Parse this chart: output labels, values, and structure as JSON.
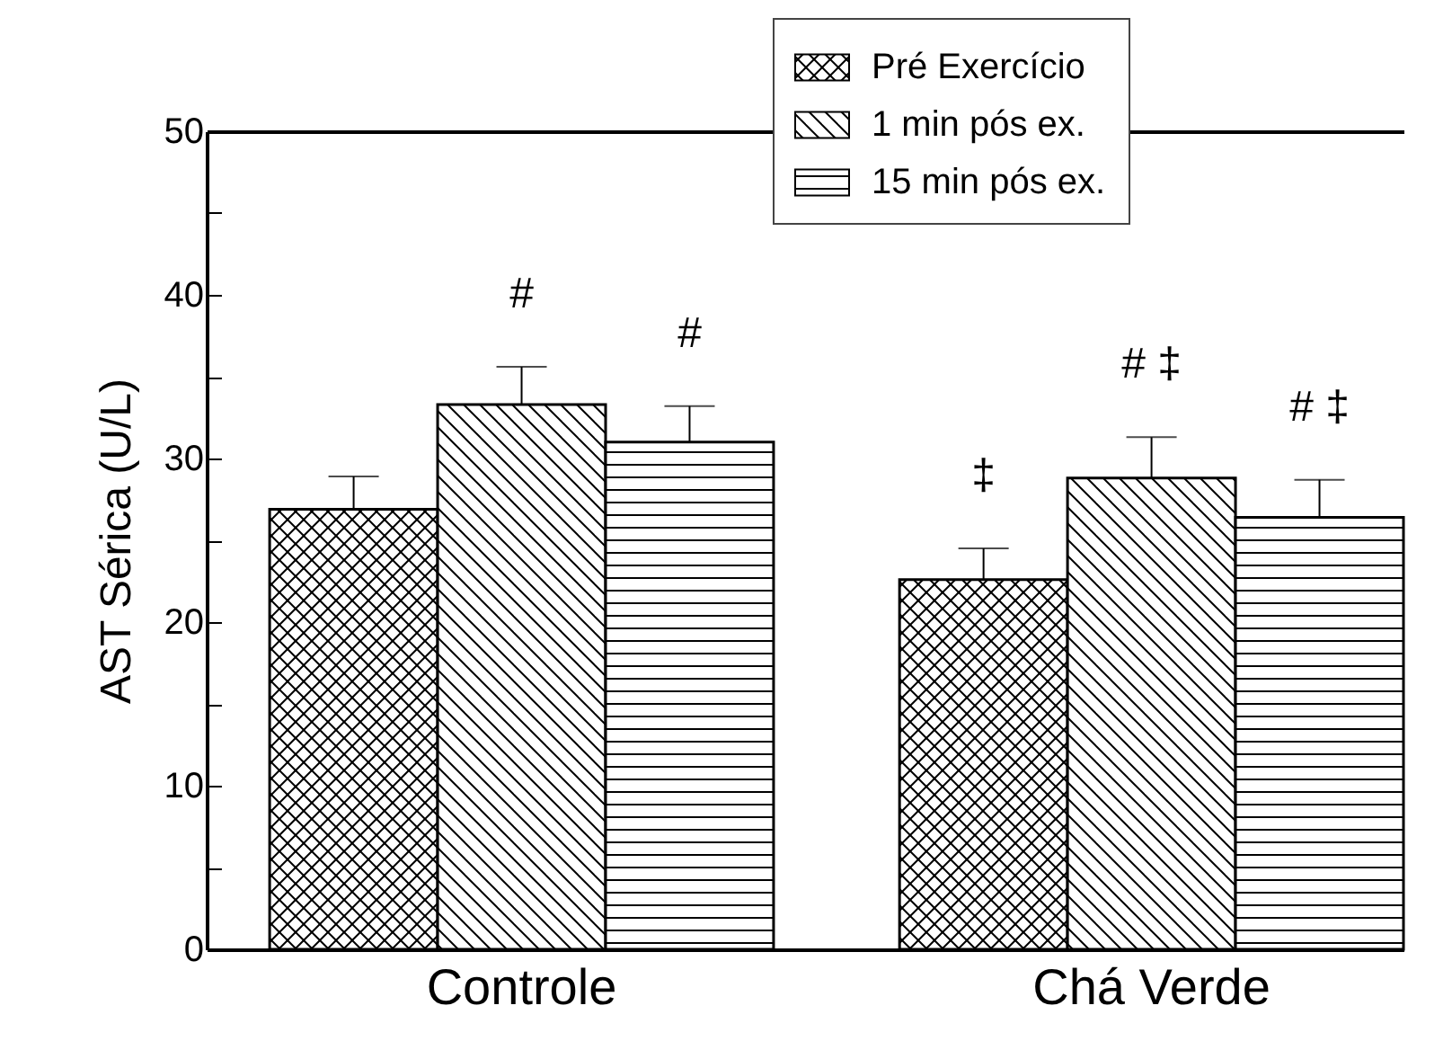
{
  "chart_data": {
    "type": "bar",
    "ylabel": "AST Sérica (U/L)",
    "categories": [
      "Controle",
      "Chá Verde"
    ],
    "series": [
      {
        "name": "Pré Exercício",
        "color": "#000000",
        "values": [
          26.9,
          22.6
        ],
        "errors": [
          2.0,
          1.9
        ],
        "value_labels": [
          null,
          "‡"
        ]
      },
      {
        "name": "1 min pós ex.",
        "color": "#000000",
        "values": [
          33.3,
          28.8
        ],
        "errors": [
          2.3,
          2.5
        ],
        "value_labels": [
          "#",
          "# ‡"
        ]
      },
      {
        "name": "15 min pós ex.",
        "color": "#000000",
        "values": [
          31.0,
          26.4
        ],
        "errors": [
          2.2,
          2.3
        ],
        "value_labels": [
          "#",
          "# ‡"
        ]
      }
    ],
    "ylim": [
      0,
      50
    ],
    "yticks": [
      0,
      {
        "value": 5,
        "label": null
      },
      10,
      {
        "value": 15,
        "label": null
      },
      20,
      {
        "value": 25,
        "label": null
      },
      30,
      {
        "value": 35,
        "label": null
      },
      40,
      {
        "value": 45,
        "label": null
      },
      50
    ],
    "legend": "top right",
    "grid": false
  }
}
